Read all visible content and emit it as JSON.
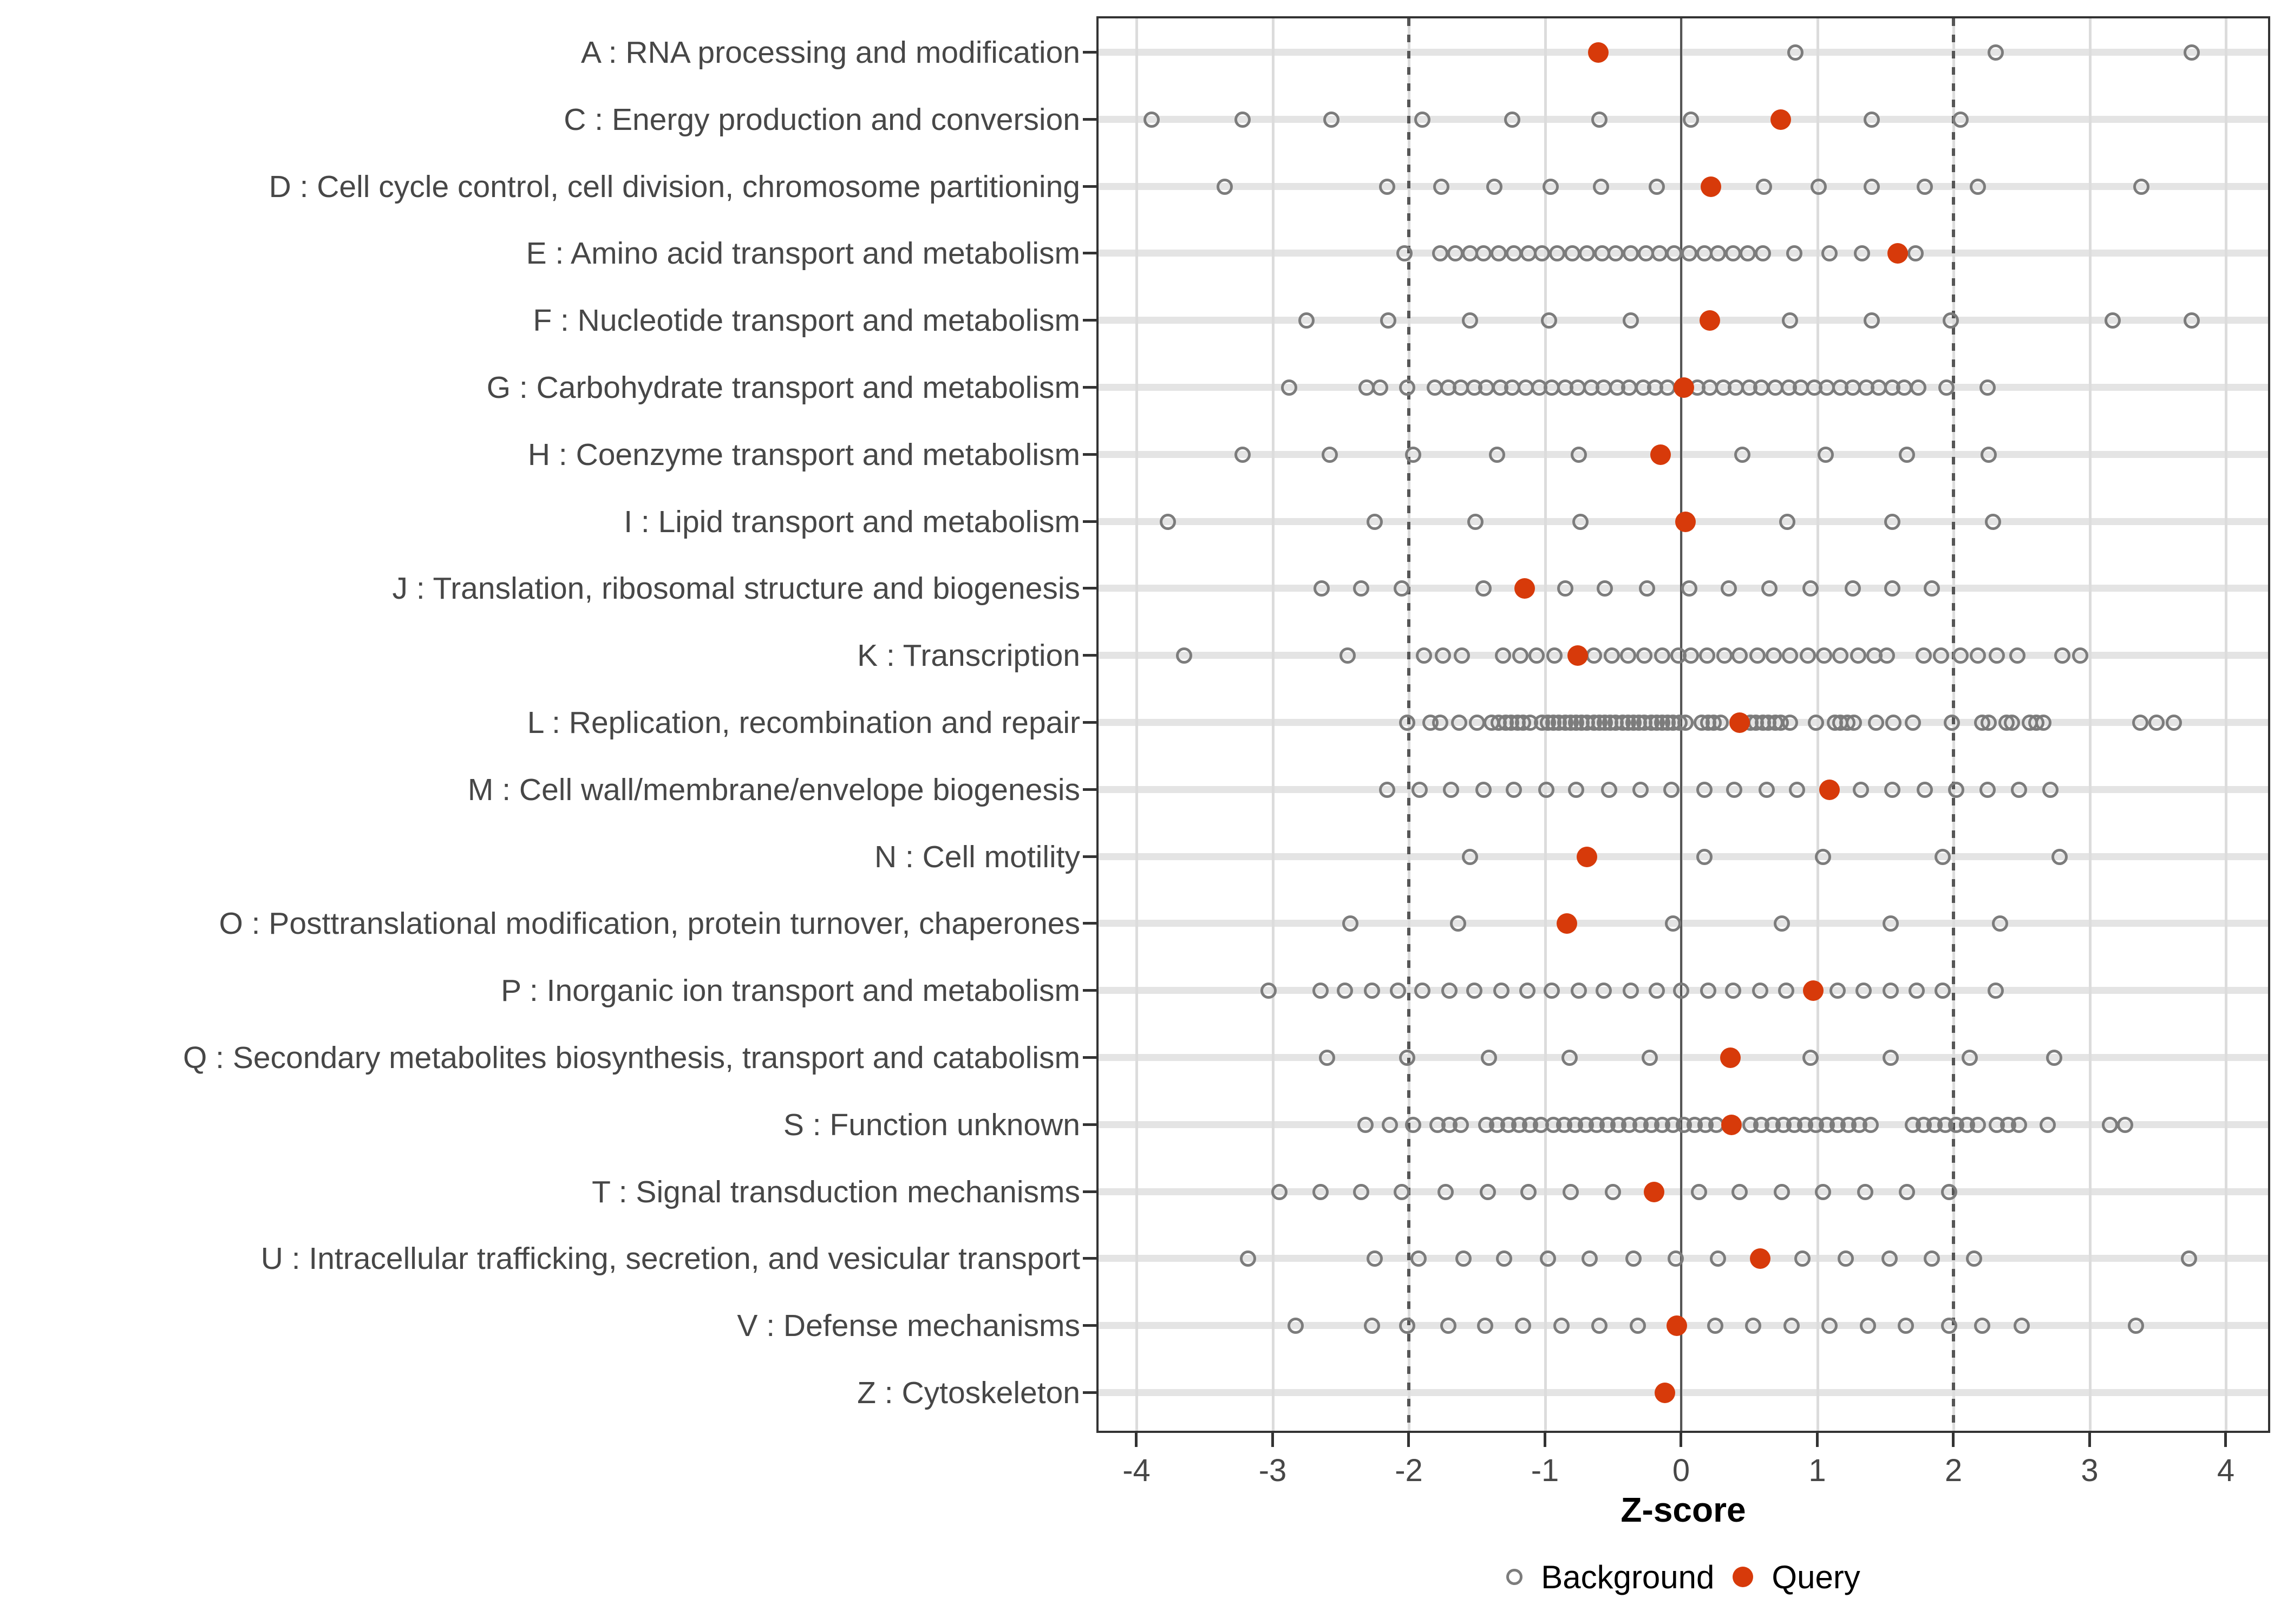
{
  "figure": {
    "xlabel": "Z-score",
    "legend_background_label": "Background",
    "legend_query_label": "Query"
  },
  "colors": {
    "query": "#D73A0A",
    "background_stroke": "#7C7C7C",
    "grid_line": "#DCDCDC",
    "row_band": "#E4E4E4",
    "reference_line": "#555555",
    "axis_text": "#474747",
    "title_text": "#000000",
    "panel_border": "#333333"
  },
  "chart_data": {
    "type": "scatter",
    "subtype": "horizontal-dot-plot",
    "title": "",
    "xlabel": "Z-score",
    "ylabel": "",
    "xlim": [
      -4.3,
      4.33
    ],
    "x_ticks": [
      -4,
      -3,
      -2,
      -1,
      0,
      1,
      2,
      3,
      4
    ],
    "grid": true,
    "reference_lines": {
      "solid_at": [
        0
      ],
      "dashed_at": [
        -2,
        2
      ]
    },
    "legend": {
      "position": "bottom",
      "entries": [
        {
          "label": "Background",
          "marker": "open-circle",
          "color": "#7C7C7C"
        },
        {
          "label": "Query",
          "marker": "filled-circle",
          "color": "#D73A0A"
        }
      ]
    },
    "series": [
      {
        "category": "A : RNA processing and modification",
        "query": -0.61,
        "background": [
          0.84,
          2.31,
          3.75
        ]
      },
      {
        "category": "C : Energy production and conversion",
        "query": 0.73,
        "background": [
          -3.89,
          -3.22,
          -2.57,
          -1.9,
          -1.24,
          -0.6,
          0.07,
          1.4,
          2.05
        ]
      },
      {
        "category": "D : Cell cycle control, cell division, chromosome partitioning",
        "query": 0.22,
        "background": [
          -3.35,
          -2.16,
          -1.76,
          -1.37,
          -0.96,
          -0.59,
          -0.18,
          0.61,
          1.01,
          1.4,
          1.79,
          2.18,
          3.38
        ]
      },
      {
        "category": "E : Amino acid transport and metabolism",
        "query": 1.59,
        "background": [
          -2.03,
          -1.77,
          -1.66,
          -1.55,
          -1.45,
          -1.34,
          -1.23,
          -1.12,
          -1.02,
          -0.91,
          -0.8,
          -0.69,
          -0.58,
          -0.48,
          -0.37,
          -0.26,
          -0.16,
          -0.05,
          0.06,
          0.17,
          0.27,
          0.38,
          0.49,
          0.6,
          0.83,
          1.09,
          1.33,
          1.72
        ]
      },
      {
        "category": "F : Nucleotide transport and metabolism",
        "query": 0.21,
        "background": [
          -2.75,
          -2.15,
          -1.55,
          -0.97,
          -0.37,
          0.8,
          1.4,
          1.98,
          3.17,
          3.75
        ]
      },
      {
        "category": "G : Carbohydrate transport and metabolism",
        "query": 0.02,
        "background": [
          -2.88,
          -2.31,
          -2.21,
          -2.01,
          -1.81,
          -1.71,
          -1.62,
          -1.52,
          -1.43,
          -1.33,
          -1.24,
          -1.14,
          -1.04,
          -0.95,
          -0.85,
          -0.76,
          -0.66,
          -0.57,
          -0.47,
          -0.38,
          -0.28,
          -0.19,
          -0.1,
          0.12,
          0.21,
          0.31,
          0.4,
          0.5,
          0.59,
          0.69,
          0.79,
          0.88,
          0.98,
          1.07,
          1.17,
          1.26,
          1.36,
          1.45,
          1.55,
          1.64,
          1.74,
          1.95,
          2.25
        ]
      },
      {
        "category": "H : Coenzyme transport and metabolism",
        "query": -0.15,
        "background": [
          -3.22,
          -2.58,
          -1.97,
          -1.35,
          -0.75,
          0.45,
          1.06,
          1.66,
          2.26
        ]
      },
      {
        "category": "I : Lipid transport and metabolism",
        "query": 0.03,
        "background": [
          -3.77,
          -2.25,
          -1.51,
          -0.74,
          0.78,
          1.55,
          2.29
        ]
      },
      {
        "category": "J : Translation, ribosomal structure and biogenesis",
        "query": -1.15,
        "background": [
          -2.64,
          -2.35,
          -2.05,
          -1.45,
          -0.85,
          -0.56,
          -0.25,
          0.06,
          0.35,
          0.65,
          0.95,
          1.26,
          1.55,
          1.84
        ]
      },
      {
        "category": "K : Transcription",
        "query": -0.76,
        "background": [
          -3.65,
          -2.45,
          -1.89,
          -1.75,
          -1.61,
          -1.31,
          -1.18,
          -1.06,
          -0.93,
          -0.64,
          -0.51,
          -0.39,
          -0.27,
          -0.14,
          -0.02,
          0.07,
          0.19,
          0.32,
          0.43,
          0.56,
          0.68,
          0.8,
          0.93,
          1.05,
          1.17,
          1.3,
          1.42,
          1.51,
          1.78,
          1.91,
          2.05,
          2.18,
          2.32,
          2.47,
          2.8,
          2.93
        ]
      },
      {
        "category": "L : Replication, recombination and repair",
        "query": 0.43,
        "background": [
          -2.01,
          -1.84,
          -1.77,
          -1.63,
          -1.5,
          -1.39,
          -1.34,
          -1.29,
          -1.25,
          -1.2,
          -1.16,
          -1.11,
          -1.02,
          -0.98,
          -0.94,
          -0.9,
          -0.85,
          -0.81,
          -0.77,
          -0.73,
          -0.69,
          -0.64,
          -0.6,
          -0.56,
          -0.52,
          -0.48,
          -0.43,
          -0.39,
          -0.35,
          -0.31,
          -0.27,
          -0.22,
          -0.18,
          -0.14,
          -0.1,
          -0.06,
          -0.01,
          0.03,
          0.15,
          0.2,
          0.24,
          0.29,
          0.51,
          0.55,
          0.6,
          0.64,
          0.69,
          0.73,
          0.8,
          0.99,
          1.13,
          1.17,
          1.22,
          1.27,
          1.43,
          1.56,
          1.7,
          1.99,
          2.21,
          2.26,
          2.39,
          2.43,
          2.56,
          2.61,
          2.66,
          3.37,
          3.49,
          3.62
        ]
      },
      {
        "category": "M : Cell wall/membrane/envelope biogenesis",
        "query": 1.09,
        "background": [
          -2.16,
          -1.92,
          -1.69,
          -1.45,
          -1.23,
          -0.99,
          -0.77,
          -0.53,
          -0.3,
          -0.07,
          0.17,
          0.39,
          0.63,
          0.85,
          1.32,
          1.55,
          1.79,
          2.02,
          2.25,
          2.48,
          2.71
        ]
      },
      {
        "category": "N : Cell motility",
        "query": -0.69,
        "background": [
          -1.55,
          0.17,
          1.04,
          1.92,
          2.78
        ]
      },
      {
        "category": "O : Posttranslational modification, protein turnover, chaperones",
        "query": -0.84,
        "background": [
          -2.43,
          -1.64,
          -0.06,
          0.74,
          1.54,
          2.34
        ]
      },
      {
        "category": "P : Inorganic ion transport and metabolism",
        "query": 0.97,
        "background": [
          -3.03,
          -2.65,
          -2.47,
          -2.27,
          -2.08,
          -1.9,
          -1.7,
          -1.52,
          -1.32,
          -1.13,
          -0.95,
          -0.75,
          -0.57,
          -0.37,
          -0.18,
          0.0,
          0.2,
          0.38,
          0.58,
          0.77,
          1.15,
          1.34,
          1.54,
          1.73,
          1.92,
          2.31
        ]
      },
      {
        "category": "Q : Secondary metabolites biosynthesis, transport and catabolism",
        "query": 0.36,
        "background": [
          -2.6,
          -2.01,
          -1.41,
          -0.82,
          -0.23,
          0.95,
          1.54,
          2.12,
          2.74
        ]
      },
      {
        "category": "S : Function unknown",
        "query": 0.37,
        "background": [
          -2.32,
          -2.14,
          -1.97,
          -1.79,
          -1.7,
          -1.62,
          -1.43,
          -1.35,
          -1.27,
          -1.19,
          -1.11,
          -1.03,
          -0.94,
          -0.86,
          -0.78,
          -0.7,
          -0.62,
          -0.54,
          -0.46,
          -0.38,
          -0.3,
          -0.22,
          -0.14,
          -0.06,
          0.02,
          0.1,
          0.18,
          0.26,
          0.51,
          0.59,
          0.67,
          0.75,
          0.83,
          0.91,
          0.99,
          1.07,
          1.15,
          1.23,
          1.31,
          1.39,
          1.7,
          1.78,
          1.86,
          1.94,
          2.02,
          2.1,
          2.18,
          2.32,
          2.4,
          2.48,
          2.69,
          3.15,
          3.26
        ]
      },
      {
        "category": "T : Signal transduction mechanisms",
        "query": -0.2,
        "background": [
          -2.95,
          -2.65,
          -2.35,
          -2.05,
          -1.73,
          -1.42,
          -1.12,
          -0.81,
          -0.5,
          0.13,
          0.43,
          0.74,
          1.04,
          1.35,
          1.66,
          1.97
        ]
      },
      {
        "category": "U : Intracellular trafficking, secretion, and vesicular transport",
        "query": 0.58,
        "background": [
          -3.18,
          -2.25,
          -1.93,
          -1.6,
          -1.3,
          -0.98,
          -0.67,
          -0.35,
          -0.04,
          0.27,
          0.89,
          1.21,
          1.53,
          1.84,
          2.15,
          3.73
        ]
      },
      {
        "category": "V : Defense mechanisms",
        "query": -0.03,
        "background": [
          -2.83,
          -2.27,
          -2.01,
          -1.71,
          -1.44,
          -1.16,
          -0.88,
          -0.6,
          -0.32,
          0.25,
          0.53,
          0.81,
          1.09,
          1.37,
          1.65,
          1.97,
          2.21,
          2.5,
          3.34
        ]
      },
      {
        "category": "Z : Cytoskeleton",
        "query": -0.12,
        "background": []
      }
    ]
  }
}
